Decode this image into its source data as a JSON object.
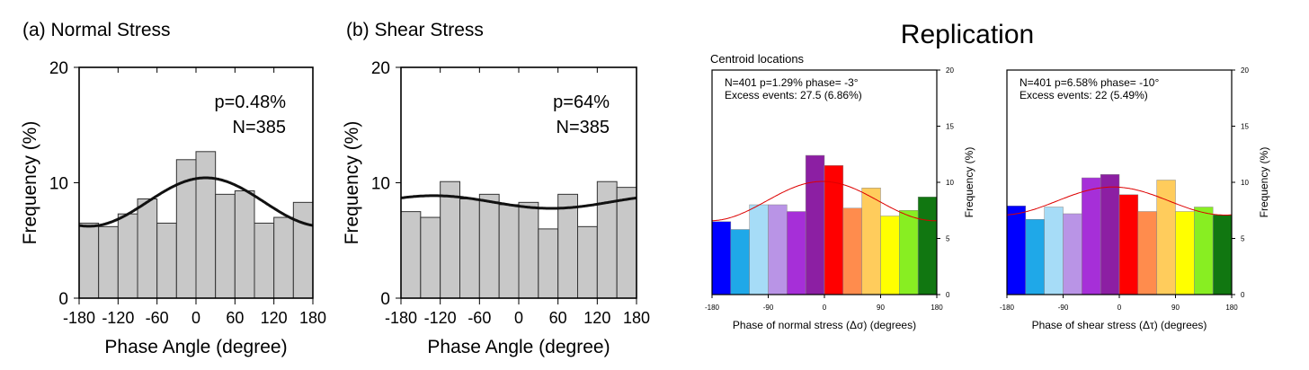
{
  "replication_title": "Replication",
  "chart_data": [
    {
      "id": "a",
      "type": "bar",
      "title": "(a) Normal Stress",
      "xlabel": "Phase Angle (degree)",
      "ylabel": "Frequency (%)",
      "xlim": [
        -180,
        180
      ],
      "ylim": [
        0,
        20
      ],
      "xticks": [
        -180,
        -120,
        -60,
        0,
        60,
        120,
        180
      ],
      "xtick_labels": [
        "-180",
        "-120",
        "-60",
        "0",
        "60",
        "120",
        "180"
      ],
      "yticks": [
        0,
        10,
        20
      ],
      "ytick_labels": [
        "0",
        "10",
        "20"
      ],
      "bin_width": 30,
      "bin_starts": [
        -180,
        -150,
        -120,
        -90,
        -60,
        -30,
        0,
        30,
        60,
        90,
        120,
        150
      ],
      "values": [
        6.5,
        6.2,
        7.3,
        8.6,
        6.5,
        12.0,
        12.7,
        9.0,
        9.3,
        6.5,
        7.0,
        8.3
      ],
      "bar_color": "#c8c8c8",
      "curve": {
        "type": "cosine",
        "mean": 8.33,
        "amplitude": 2.1,
        "phase_deg": 15,
        "color": "#111111"
      },
      "annotations": [
        "p=0.48%",
        "N=385"
      ]
    },
    {
      "id": "b",
      "type": "bar",
      "title": "(b) Shear Stress",
      "xlabel": "Phase Angle (degree)",
      "ylabel": "Frequency (%)",
      "xlim": [
        -180,
        180
      ],
      "ylim": [
        0,
        20
      ],
      "xticks": [
        -180,
        -120,
        -60,
        0,
        60,
        120,
        180
      ],
      "xtick_labels": [
        "-180",
        "-120",
        "-60",
        "0",
        "60",
        "120",
        "180"
      ],
      "yticks": [
        0,
        10,
        20
      ],
      "ytick_labels": [
        "0",
        "10",
        "20"
      ],
      "bin_width": 30,
      "bin_starts": [
        -180,
        -150,
        -120,
        -90,
        -60,
        -30,
        0,
        30,
        60,
        90,
        120,
        150
      ],
      "values": [
        7.5,
        7.0,
        10.1,
        8.6,
        9.0,
        8.1,
        8.3,
        6.0,
        9.0,
        6.2,
        10.1,
        9.6
      ],
      "bar_color": "#c8c8c8",
      "curve": {
        "type": "cosine",
        "mean": 8.33,
        "amplitude": 0.55,
        "phase_deg": -130,
        "color": "#111111"
      },
      "annotations": [
        "p=64%",
        "N=385"
      ]
    },
    {
      "id": "c",
      "type": "bar",
      "title": "Centroid locations",
      "xlabel": "Phase of normal stress (Δσ) (degrees)",
      "ylabel": "Frequency (%)",
      "xlim": [
        -180,
        180
      ],
      "ylim": [
        0,
        20
      ],
      "xticks": [
        -180,
        -90,
        0,
        90,
        180
      ],
      "xtick_labels": [
        "-180",
        "-90",
        "0",
        "90",
        "180"
      ],
      "yticks": [
        0,
        5,
        10,
        15,
        20
      ],
      "ytick_labels": [
        "0",
        "5",
        "10",
        "15",
        "20"
      ],
      "bin_width": 30,
      "bin_starts": [
        -180,
        -150,
        -120,
        -90,
        -60,
        -30,
        0,
        30,
        60,
        90,
        120,
        150
      ],
      "values": [
        6.5,
        5.8,
        8.0,
        8.0,
        7.4,
        12.4,
        11.5,
        7.7,
        9.5,
        7.0,
        7.5,
        8.7
      ],
      "bar_colors": [
        "#0000ff",
        "#1fa8e8",
        "#a6dcf7",
        "#b994e6",
        "#a62fd8",
        "#8c1fa3",
        "#ff0000",
        "#ff8c4d",
        "#ffcc5c",
        "#ffff00",
        "#88ee22",
        "#117711"
      ],
      "curve": {
        "type": "cosine",
        "mean": 8.33,
        "amplitude": 1.75,
        "phase_deg": -3,
        "color": "#dd0000"
      },
      "annotations": [
        "N=401   p=1.29%   phase= -3°",
        "Excess events: 27.5 (6.86%)"
      ]
    },
    {
      "id": "d",
      "type": "bar",
      "title": "",
      "xlabel": "Phase of shear stress (Δτ) (degrees)",
      "ylabel": "Frequency (%)",
      "xlim": [
        -180,
        180
      ],
      "ylim": [
        0,
        20
      ],
      "xticks": [
        -180,
        -90,
        0,
        90,
        180
      ],
      "xtick_labels": [
        "-180",
        "-90",
        "0",
        "90",
        "180"
      ],
      "yticks": [
        0,
        5,
        10,
        15,
        20
      ],
      "ytick_labels": [
        "0",
        "5",
        "10",
        "15",
        "20"
      ],
      "bin_width": 30,
      "bin_starts": [
        -180,
        -150,
        -120,
        -90,
        -60,
        -30,
        0,
        30,
        60,
        90,
        120,
        150
      ],
      "values": [
        7.9,
        6.7,
        7.8,
        7.2,
        10.4,
        10.7,
        8.9,
        7.4,
        10.2,
        7.4,
        7.8,
        7.1
      ],
      "bar_colors": [
        "#0000ff",
        "#1fa8e8",
        "#a6dcf7",
        "#b994e6",
        "#a62fd8",
        "#8c1fa3",
        "#ff0000",
        "#ff8c4d",
        "#ffcc5c",
        "#ffff00",
        "#88ee22",
        "#117711"
      ],
      "curve": {
        "type": "cosine",
        "mean": 8.33,
        "amplitude": 1.25,
        "phase_deg": -10,
        "color": "#dd0000"
      },
      "annotations": [
        "N=401   p=6.58%   phase= -10°",
        "Excess events: 22 (5.49%)"
      ]
    }
  ]
}
